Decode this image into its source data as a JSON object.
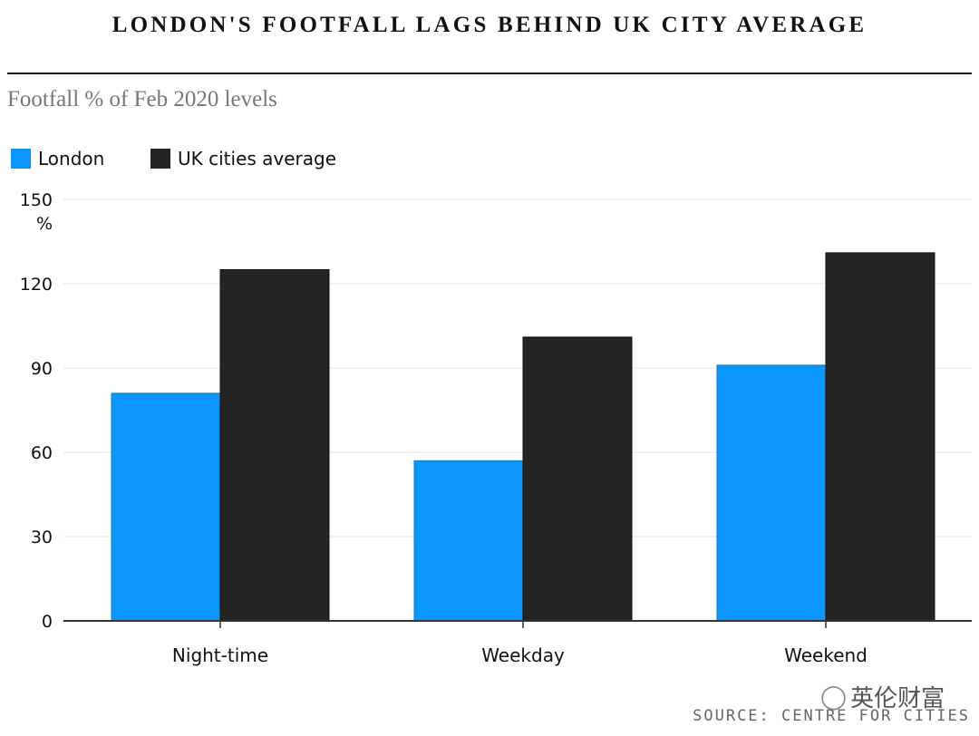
{
  "chart_data": {
    "type": "bar",
    "title": "LONDON'S FOOTFALL LAGS BEHIND UK CITY AVERAGE",
    "subtitle": "Footfall % of Feb 2020 levels",
    "categories": [
      "Night-time",
      "Weekday",
      "Weekend"
    ],
    "series": [
      {
        "name": "London",
        "color": "#0a96fa",
        "values": [
          81,
          57,
          91
        ]
      },
      {
        "name": "UK cities average",
        "color": "#242424",
        "values": [
          125,
          101,
          131
        ]
      }
    ],
    "ylim": [
      0,
      150
    ],
    "yticks": [
      0,
      30,
      60,
      90,
      120,
      150
    ],
    "yunit": "%",
    "xlabel": "",
    "ylabel": "",
    "legend_position": "top-left",
    "grid": true
  },
  "watermark": {
    "icon": "wechat-icon",
    "text": "英伦财富"
  },
  "source": "SOURCE: CENTRE FOR CITIES"
}
